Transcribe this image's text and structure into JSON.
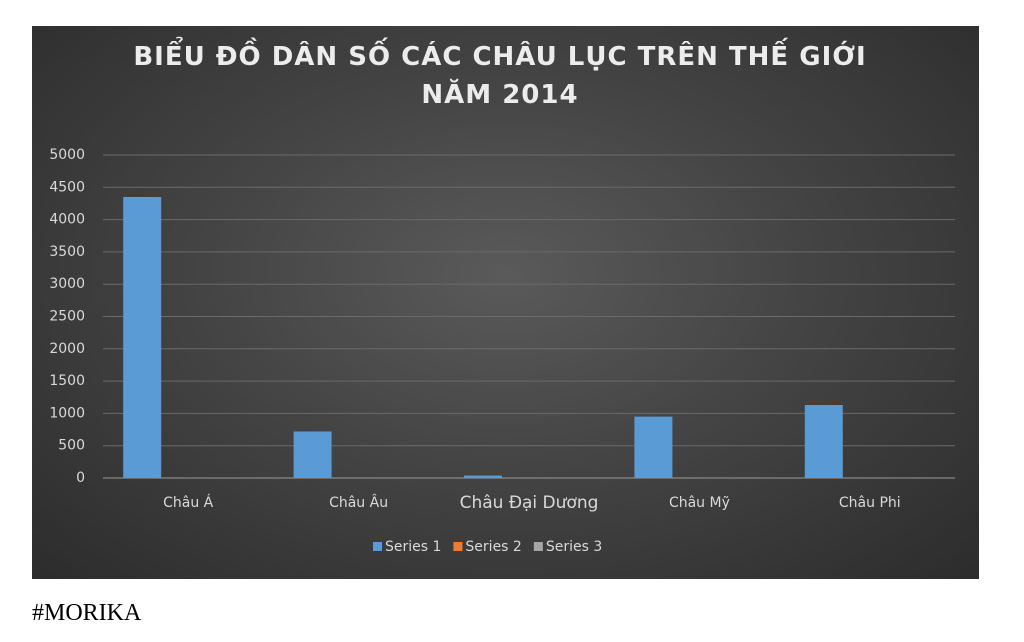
{
  "chart_data": {
    "type": "bar",
    "title": "BIỂU ĐỒ DÂN SỐ CÁC CHÂU LỤC TRÊN THẾ GIỚI NĂM 2014",
    "categories": [
      "Châu Á",
      "Châu Âu",
      "Châu Đại Dương",
      "Châu Mỹ",
      "Châu Phi"
    ],
    "series": [
      {
        "name": "Series 1",
        "color": "#5b9bd5",
        "values": [
          4350,
          720,
          38,
          950,
          1130
        ]
      },
      {
        "name": "Series 2",
        "color": "#ed7d31",
        "values": [
          0,
          0,
          0,
          0,
          0
        ]
      },
      {
        "name": "Series 3",
        "color": "#a5a5a5",
        "values": [
          0,
          0,
          0,
          0,
          0
        ]
      }
    ],
    "ylim": [
      0,
      5000
    ],
    "yticks": [
      0,
      500,
      1000,
      1500,
      2000,
      2500,
      3000,
      3500,
      4000,
      4500,
      5000
    ],
    "grid": true,
    "legend": "bottom"
  },
  "caption": "#MORIKA"
}
